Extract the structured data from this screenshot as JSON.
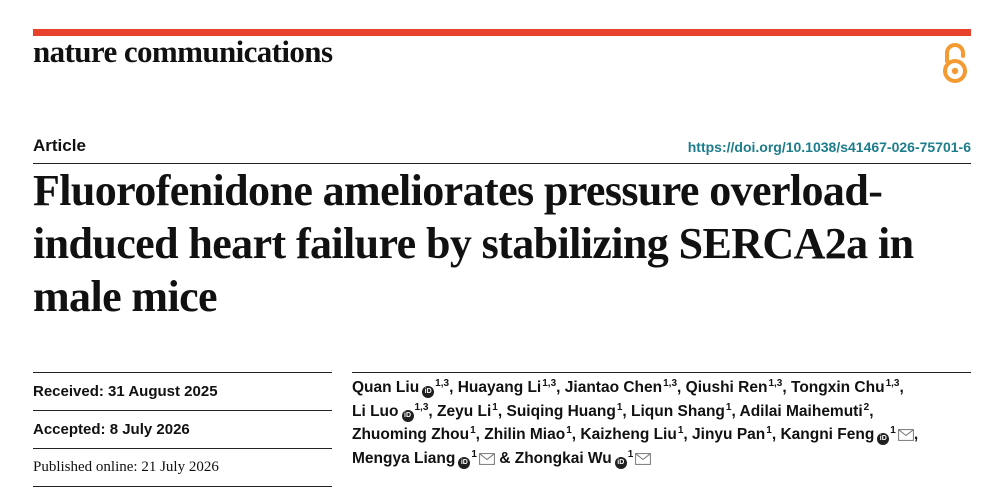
{
  "journal": {
    "name": "nature communications"
  },
  "colors": {
    "accent": "#e8412c",
    "doi_link": "#1d7d8c",
    "oa_icon": "#f39a33"
  },
  "icons": {
    "open_access": "open-access-icon",
    "orcid": "orcid-icon",
    "email": "email-icon"
  },
  "article": {
    "type": "Article",
    "doi": "https://doi.org/10.1038/s41467-026-75701-6",
    "title": "Fluorofenidone ameliorates pressure overload-induced heart failure by stabilizing SERCA2a in male mice"
  },
  "dates": {
    "received_label": "Received:",
    "received": "31 August 2025",
    "accepted_label": "Accepted:",
    "accepted": "8 July 2026",
    "published_label": "Published online:",
    "published": "21 July 2026"
  },
  "authors": [
    {
      "name": "Quan Liu",
      "aff": "1,3",
      "orcid": true,
      "email": false
    },
    {
      "name": "Huayang Li",
      "aff": "1,3",
      "orcid": false,
      "email": false
    },
    {
      "name": "Jiantao Chen",
      "aff": "1,3",
      "orcid": false,
      "email": false
    },
    {
      "name": "Qiushi Ren",
      "aff": "1,3",
      "orcid": false,
      "email": false
    },
    {
      "name": "Tongxin Chu",
      "aff": "1,3",
      "orcid": false,
      "email": false
    },
    {
      "name": "Li Luo",
      "aff": "1,3",
      "orcid": true,
      "email": false
    },
    {
      "name": "Zeyu Li",
      "aff": "1",
      "orcid": false,
      "email": false
    },
    {
      "name": "Suiqing Huang",
      "aff": "1",
      "orcid": false,
      "email": false
    },
    {
      "name": "Liqun Shang",
      "aff": "1",
      "orcid": false,
      "email": false
    },
    {
      "name": "Adilai Maihemuti",
      "aff": "2",
      "orcid": false,
      "email": false
    },
    {
      "name": "Zhuoming Zhou",
      "aff": "1",
      "orcid": false,
      "email": false
    },
    {
      "name": "Zhilin Miao",
      "aff": "1",
      "orcid": false,
      "email": false
    },
    {
      "name": "Kaizheng Liu",
      "aff": "1",
      "orcid": false,
      "email": false
    },
    {
      "name": "Jinyu Pan",
      "aff": "1",
      "orcid": false,
      "email": false
    },
    {
      "name": "Kangni Feng",
      "aff": "1",
      "orcid": true,
      "email": true
    },
    {
      "name": "Mengya Liang",
      "aff": "1",
      "orcid": true,
      "email": true
    },
    {
      "name": "Zhongkai Wu",
      "aff": "1",
      "orcid": true,
      "email": true
    }
  ]
}
